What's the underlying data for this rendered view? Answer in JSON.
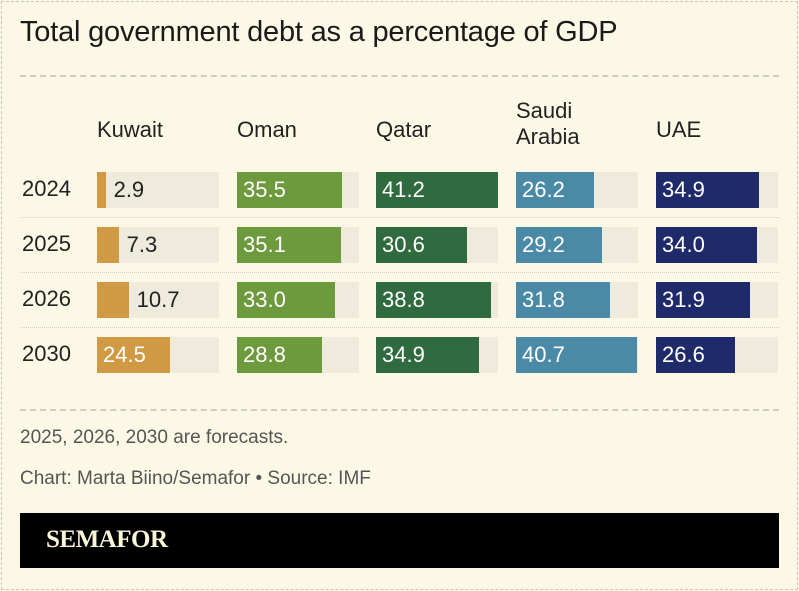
{
  "chart_data": {
    "type": "bar",
    "title": "Total government debt as a percentage of GDP",
    "categories": [
      "2024",
      "2025",
      "2026",
      "2030"
    ],
    "series": [
      {
        "name": "Kuwait",
        "values": [
          2.9,
          7.3,
          10.7,
          24.5
        ],
        "color": "#d09a45"
      },
      {
        "name": "Oman",
        "values": [
          35.5,
          35.1,
          33.0,
          28.8
        ],
        "color": "#6e9a3e"
      },
      {
        "name": "Qatar",
        "values": [
          41.2,
          30.6,
          38.8,
          34.9
        ],
        "color": "#2f6b3f"
      },
      {
        "name": "Saudi Arabia",
        "values": [
          26.2,
          29.2,
          31.8,
          40.7
        ],
        "color": "#4a8aa6"
      },
      {
        "name": "UAE",
        "values": [
          34.9,
          34.0,
          31.9,
          26.6
        ],
        "color": "#1f2a6b"
      }
    ],
    "value_labels": [
      [
        "2.9",
        "7.3",
        "10.7",
        "24.5"
      ],
      [
        "35.5",
        "35.1",
        "33.0",
        "28.8"
      ],
      [
        "41.2",
        "30.6",
        "38.8",
        "34.9"
      ],
      [
        "26.2",
        "29.2",
        "31.8",
        "40.7"
      ],
      [
        "34.9",
        "34.0",
        "31.9",
        "26.6"
      ]
    ],
    "xlim": [
      0,
      41.2
    ],
    "track_color": "#eeeadc"
  },
  "notes": {
    "forecast": "2025, 2026, 2030 are forecasts.",
    "credit": "Chart: Marta Biino/Semafor • Source: IMF"
  },
  "brand": {
    "logo_text": "SEMAFOR"
  }
}
